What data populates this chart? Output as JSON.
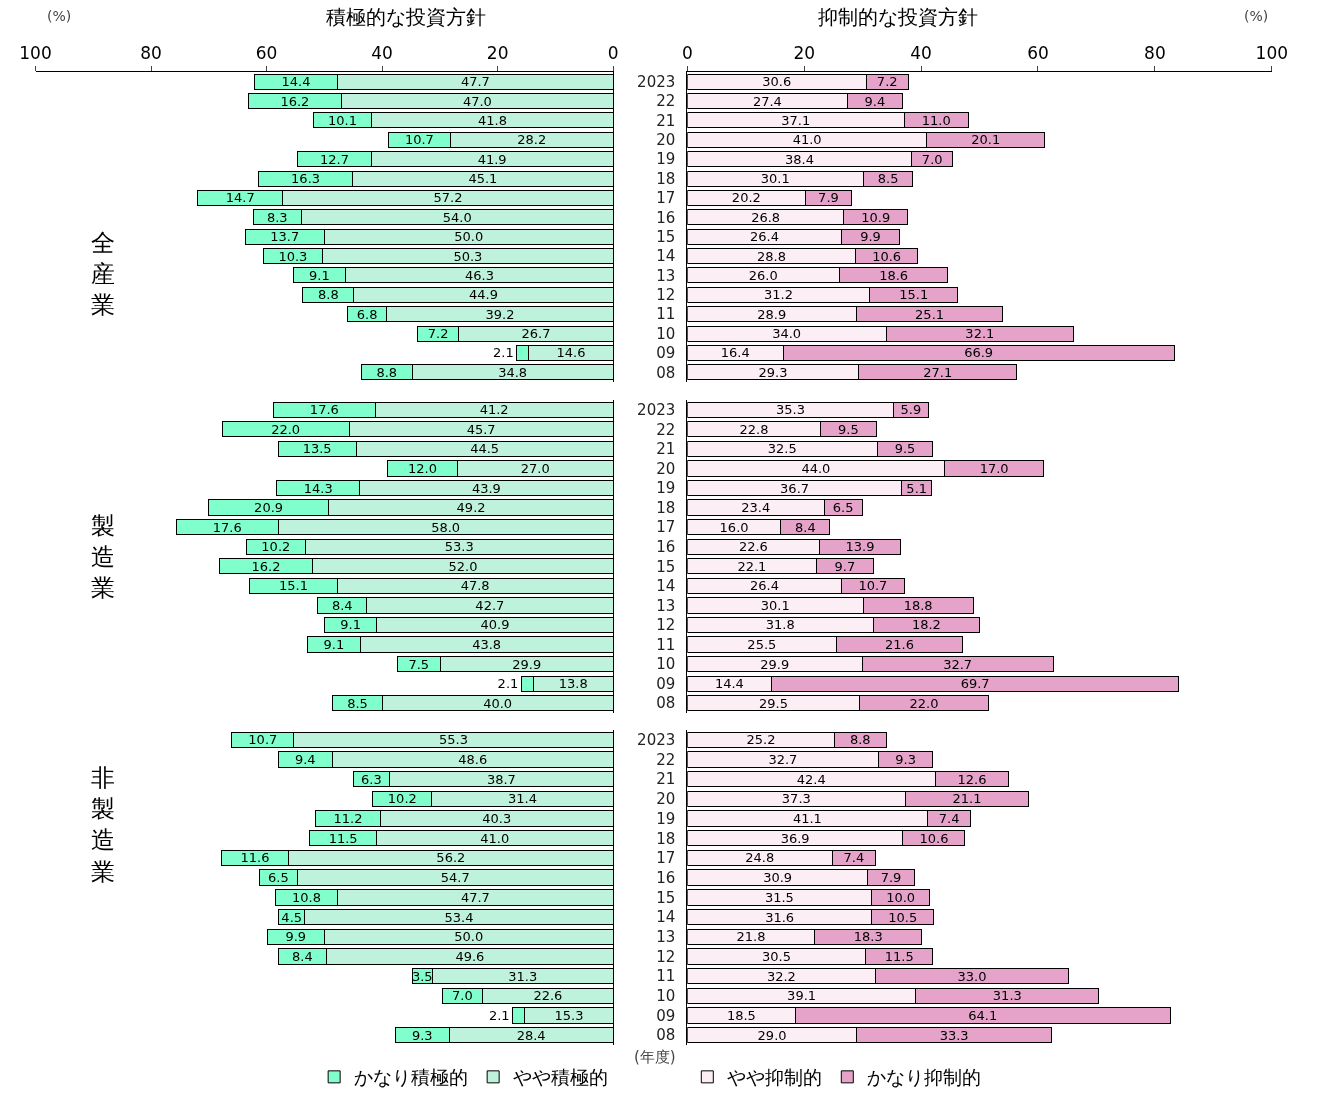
{
  "chart_data": [
    {
      "type": "bar",
      "orientation": "horizontal",
      "stacked": true,
      "title": "積極的な投資方針",
      "annotations": [
        "(%)",
        "全産業"
      ],
      "categories": [
        "2023",
        "22",
        "21",
        "20",
        "19",
        "18",
        "17",
        "16",
        "15",
        "14",
        "13",
        "12",
        "11",
        "10",
        "09",
        "08"
      ],
      "xlim": [
        100,
        0
      ],
      "xticks": [
        100,
        80,
        60,
        40,
        20,
        0
      ],
      "tick_labels": "x",
      "legend": false,
      "series": [
        {
          "color": "#bff2dc",
          "values": [
            47.7,
            47.0,
            41.8,
            28.2,
            41.9,
            45.1,
            57.2,
            54.0,
            50.0,
            50.3,
            46.3,
            44.9,
            39.2,
            26.7,
            14.6,
            34.8
          ],
          "value_labels": [
            "47.7",
            "47.0",
            "41.8",
            "28.2",
            "41.9",
            "45.1",
            "57.2",
            "54.0",
            "50.0",
            "50.3",
            "46.3",
            "44.9",
            "39.2",
            "26.7",
            "14.6",
            "34.8"
          ]
        },
        {
          "color": "#80ffcc",
          "values": [
            14.4,
            16.2,
            10.1,
            10.7,
            12.7,
            16.3,
            14.7,
            8.3,
            13.7,
            10.3,
            9.1,
            8.8,
            6.8,
            7.2,
            2.1,
            8.8
          ],
          "value_labels": [
            "14.4",
            "16.2",
            "10.1",
            "10.7",
            "12.7",
            "16.3",
            "14.7",
            "8.3",
            "13.7",
            "10.3",
            "9.1",
            "8.8",
            "6.8",
            "7.2",
            "2.1",
            "8.8"
          ]
        }
      ]
    },
    {
      "type": "bar",
      "orientation": "horizontal",
      "stacked": true,
      "title": "抑制的な投資方針",
      "annotations": [
        "(%)"
      ],
      "categories": [
        "2023",
        "22",
        "21",
        "20",
        "19",
        "18",
        "17",
        "16",
        "15",
        "14",
        "13",
        "12",
        "11",
        "10",
        "09",
        "08"
      ],
      "xlim": [
        0,
        100
      ],
      "xticks": [
        0,
        20,
        40,
        60,
        80,
        100
      ],
      "legend": false,
      "series": [
        {
          "color": "#fbeef4",
          "values": [
            30.6,
            27.4,
            37.1,
            41.0,
            38.4,
            30.1,
            20.2,
            26.8,
            26.4,
            28.8,
            26.0,
            31.2,
            28.9,
            34.0,
            16.4,
            29.3
          ],
          "value_labels": [
            "30.6",
            "27.4",
            "37.1",
            "41.0",
            "38.4",
            "30.1",
            "20.2",
            "26.8",
            "26.4",
            "28.8",
            "26.0",
            "31.2",
            "28.9",
            "34.0",
            "16.4",
            "29.3"
          ]
        },
        {
          "color": "#e6a3c9",
          "values": [
            7.2,
            9.4,
            11.0,
            20.1,
            7.0,
            8.5,
            7.9,
            10.9,
            9.9,
            10.6,
            18.6,
            15.1,
            25.1,
            32.1,
            66.9,
            27.1
          ],
          "value_labels": [
            "7.2",
            "9.4",
            "11.0",
            "20.1",
            "7.0",
            "8.5",
            "7.9",
            "10.9",
            "9.9",
            "10.6",
            "18.6",
            "15.1",
            "25.1",
            "32.1",
            "66.9",
            "27.1"
          ]
        }
      ]
    },
    {
      "type": "bar",
      "orientation": "horizontal",
      "stacked": true,
      "annotations": [
        "製造業"
      ],
      "categories": [
        "2023",
        "22",
        "21",
        "20",
        "19",
        "18",
        "17",
        "16",
        "15",
        "14",
        "13",
        "12",
        "11",
        "10",
        "09",
        "08"
      ],
      "xlim": [
        100,
        0
      ],
      "tick_labels": false,
      "legend": false,
      "series": [
        {
          "color": "#bff2dc",
          "values": [
            41.2,
            45.7,
            44.5,
            27.0,
            43.9,
            49.2,
            58.0,
            53.3,
            52.0,
            47.8,
            42.7,
            40.9,
            43.8,
            29.9,
            13.8,
            40.0
          ],
          "value_labels": [
            "41.2",
            "45.7",
            "44.5",
            "27.0",
            "43.9",
            "49.2",
            "58.0",
            "53.3",
            "52.0",
            "47.8",
            "42.7",
            "40.9",
            "43.8",
            "29.9",
            "13.8",
            "40.0"
          ]
        },
        {
          "color": "#80ffcc",
          "values": [
            17.6,
            22.0,
            13.5,
            12.0,
            14.3,
            20.9,
            17.6,
            10.2,
            16.2,
            15.1,
            8.4,
            9.1,
            9.1,
            7.5,
            2.1,
            8.5
          ],
          "value_labels": [
            "17.6",
            "22.0",
            "13.5",
            "12.0",
            "14.3",
            "20.9",
            "17.6",
            "10.2",
            "16.2",
            "15.1",
            "8.4",
            "9.1",
            "9.1",
            "7.5",
            "2.1",
            "8.5"
          ]
        }
      ]
    },
    {
      "type": "bar",
      "orientation": "horizontal",
      "stacked": true,
      "categories": [
        "2023",
        "22",
        "21",
        "20",
        "19",
        "18",
        "17",
        "16",
        "15",
        "14",
        "13",
        "12",
        "11",
        "10",
        "09",
        "08"
      ],
      "xlim": [
        0,
        100
      ],
      "tick_labels": "y",
      "legend": false,
      "series": [
        {
          "color": "#fbeef4",
          "values": [
            35.3,
            22.8,
            32.5,
            44.0,
            36.7,
            23.4,
            16.0,
            22.6,
            22.1,
            26.4,
            30.1,
            31.8,
            25.5,
            29.9,
            14.4,
            29.5
          ],
          "value_labels": [
            "35.3",
            "22.8",
            "32.5",
            "44.0",
            "36.7",
            "23.4",
            "16.0",
            "22.6",
            "22.1",
            "26.4",
            "30.1",
            "31.8",
            "25.5",
            "29.9",
            "14.4",
            "29.5"
          ]
        },
        {
          "color": "#e6a3c9",
          "values": [
            5.9,
            9.5,
            9.5,
            17.0,
            5.1,
            6.5,
            8.4,
            13.9,
            9.7,
            10.7,
            18.8,
            18.2,
            21.6,
            32.7,
            69.7,
            22.0
          ],
          "value_labels": [
            "5.9",
            "9.5",
            "9.5",
            "17.0",
            "5.1",
            "6.5",
            "8.4",
            "13.9",
            "9.7",
            "10.7",
            "18.8",
            "18.2",
            "21.6",
            "32.7",
            "69.7",
            "22.0"
          ]
        }
      ]
    },
    {
      "type": "bar",
      "orientation": "horizontal",
      "stacked": true,
      "annotations": [
        "非製造業"
      ],
      "categories": [
        "2023",
        "22",
        "21",
        "20",
        "19",
        "18",
        "17",
        "16",
        "15",
        "14",
        "13",
        "12",
        "11",
        "10",
        "09",
        "08"
      ],
      "xlim": [
        100,
        0
      ],
      "tick_labels": false,
      "legend": "bottom",
      "series": [
        {
          "name": "やや積極的",
          "color": "#bff2dc",
          "values": [
            55.3,
            48.6,
            38.7,
            31.4,
            40.3,
            41.0,
            56.2,
            54.7,
            47.7,
            53.4,
            50.0,
            49.6,
            31.3,
            22.6,
            15.3,
            28.4
          ],
          "value_labels": [
            "55.3",
            "48.6",
            "38.7",
            "31.4",
            "40.3",
            "41.0",
            "56.2",
            "54.7",
            "47.7",
            "53.4",
            "50.0",
            "49.6",
            "31.3",
            "22.6",
            "15.3",
            "28.4"
          ]
        },
        {
          "name": "かなり積極的",
          "color": "#80ffcc",
          "values": [
            10.7,
            9.4,
            6.3,
            10.2,
            11.2,
            11.5,
            11.6,
            6.5,
            10.8,
            4.5,
            9.9,
            8.4,
            3.5,
            7.0,
            2.1,
            9.3
          ],
          "value_labels": [
            "10.7",
            "9.4",
            "6.3",
            "10.2",
            "11.2",
            "11.5",
            "11.6",
            "6.5",
            "10.8",
            "4.5",
            "9.9",
            "8.4",
            "3.5",
            "7.0",
            "2.1",
            "9.3"
          ]
        }
      ]
    },
    {
      "type": "bar",
      "orientation": "horizontal",
      "stacked": true,
      "annotations": [
        "(年度)"
      ],
      "categories": [
        "2023",
        "22",
        "21",
        "20",
        "19",
        "18",
        "17",
        "16",
        "15",
        "14",
        "13",
        "12",
        "11",
        "10",
        "09",
        "08"
      ],
      "xlim": [
        0,
        100
      ],
      "tick_labels": "y",
      "legend": "bottom",
      "series": [
        {
          "name": "やや抑制的",
          "color": "#fbeef4",
          "values": [
            25.2,
            32.7,
            42.4,
            37.3,
            41.1,
            36.9,
            24.8,
            30.9,
            31.5,
            31.6,
            21.8,
            30.5,
            32.2,
            39.1,
            18.5,
            29.0
          ],
          "value_labels": [
            "25.2",
            "32.7",
            "42.4",
            "37.3",
            "41.1",
            "36.9",
            "24.8",
            "30.9",
            "31.5",
            "31.6",
            "21.8",
            "30.5",
            "32.2",
            "39.1",
            "18.5",
            "29.0"
          ]
        },
        {
          "name": "かなり抑制的",
          "color": "#e6a3c9",
          "values": [
            8.8,
            9.3,
            12.6,
            21.1,
            7.4,
            10.6,
            7.4,
            7.9,
            10.0,
            10.5,
            18.3,
            11.5,
            33.0,
            31.3,
            64.1,
            33.3
          ],
          "value_labels": [
            "8.8",
            "9.3",
            "12.6",
            "21.1",
            "7.4",
            "10.6",
            "7.4",
            "7.9",
            "10.0",
            "10.5",
            "18.3",
            "11.5",
            "33.0",
            "31.3",
            "64.1",
            "33.3"
          ]
        }
      ]
    }
  ]
}
